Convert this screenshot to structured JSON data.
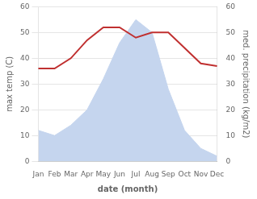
{
  "chart_data": {
    "type": "line",
    "categories": [
      "Jan",
      "Feb",
      "Mar",
      "Apr",
      "May",
      "Jun",
      "Jul",
      "Aug",
      "Sep",
      "Oct",
      "Nov",
      "Dec"
    ],
    "series": [
      {
        "type": "line",
        "color": "#c03030",
        "values": [
          36,
          36,
          40,
          47,
          52,
          52,
          48,
          50,
          50,
          44,
          38,
          37
        ]
      },
      {
        "type": "area",
        "color": "#c5d5ee",
        "axis": "y2",
        "values": [
          12,
          10,
          14,
          20,
          32,
          46,
          55,
          50,
          28,
          12,
          5,
          2
        ]
      }
    ],
    "xlabel": "date (month)",
    "ylabel": "max temp (C)",
    "y2label": "med. precipitation (kg/m2)",
    "ylim": [
      0,
      60
    ],
    "yticks": [
      0,
      10,
      20,
      30,
      40,
      50,
      60
    ],
    "y2lim": [
      0,
      60
    ],
    "y2ticks": [
      0,
      10,
      20,
      30,
      40,
      50,
      60
    ],
    "grid": true
  }
}
